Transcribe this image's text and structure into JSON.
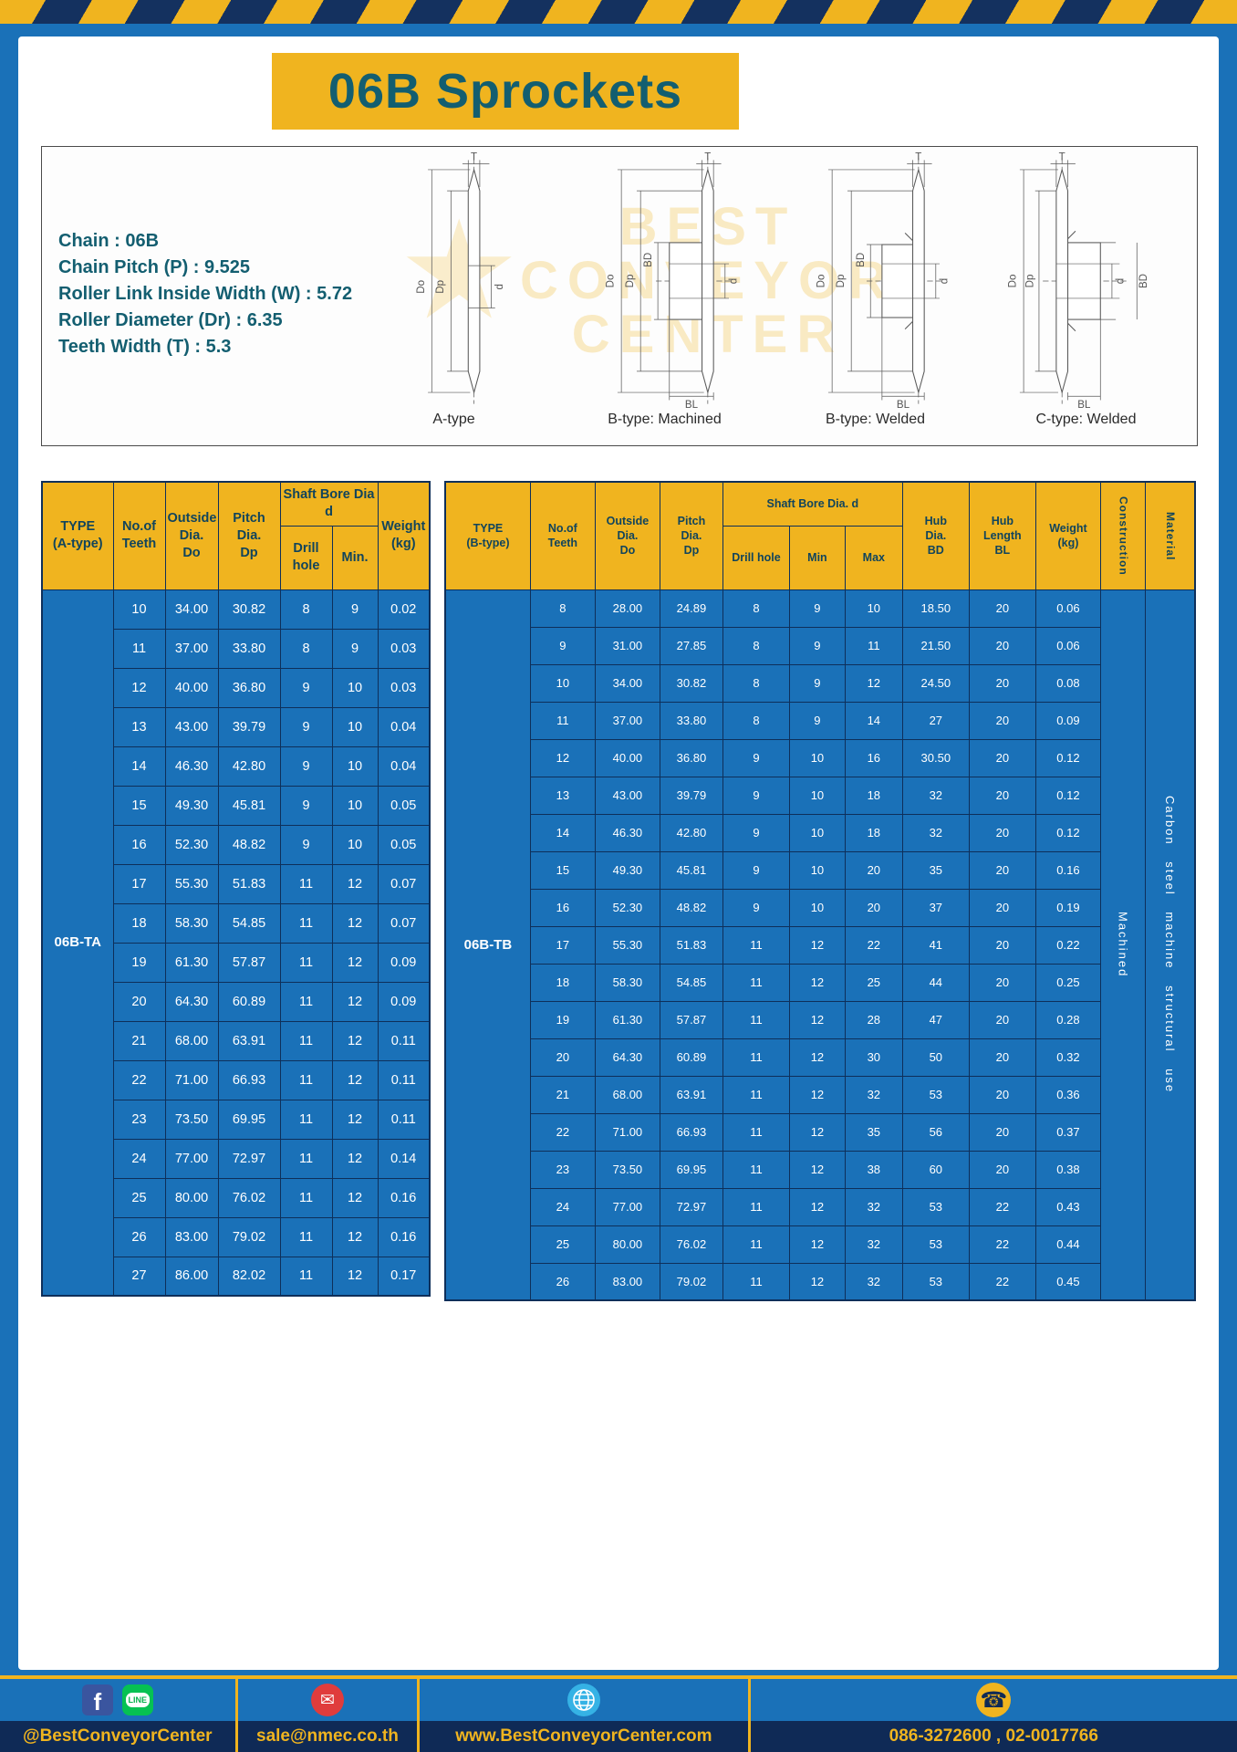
{
  "page": {
    "title": "06B Sprockets"
  },
  "specs": {
    "lines": [
      "Chain : 06B",
      "Chain Pitch (P) : 9.525",
      "Roller Link Inside Width (W) : 5.72",
      "Roller Diameter (Dr) : 6.35",
      "Teeth Width (T) : 5.3"
    ],
    "captions": [
      "A-type",
      "B-type: Machined",
      "B-type: Welded",
      "C-type: Welded"
    ],
    "dim_labels": {
      "t": "T",
      "do": "Do",
      "dp": "Dp",
      "d": "d",
      "bd": "BD",
      "bl": "BL"
    },
    "watermark": {
      "star": "★",
      "line1": "BEST",
      "line2": "CONVEYOR",
      "line3": "CENTER"
    }
  },
  "tableA": {
    "headers": {
      "type": "TYPE\n(A-type)",
      "teeth": "No.of\nTeeth",
      "outside": "Outside\nDia.\nDo",
      "pitch": "Pitch Dia.\nDp",
      "bore_group": "Shaft Bore Dia d",
      "drill": "Drill hole",
      "min": "Min.",
      "weight": "Weight\n(kg)"
    },
    "type_label": "06B-TA",
    "rows": [
      [
        "10",
        "34.00",
        "30.82",
        "8",
        "9",
        "0.02"
      ],
      [
        "11",
        "37.00",
        "33.80",
        "8",
        "9",
        "0.03"
      ],
      [
        "12",
        "40.00",
        "36.80",
        "9",
        "10",
        "0.03"
      ],
      [
        "13",
        "43.00",
        "39.79",
        "9",
        "10",
        "0.04"
      ],
      [
        "14",
        "46.30",
        "42.80",
        "9",
        "10",
        "0.04"
      ],
      [
        "15",
        "49.30",
        "45.81",
        "9",
        "10",
        "0.05"
      ],
      [
        "16",
        "52.30",
        "48.82",
        "9",
        "10",
        "0.05"
      ],
      [
        "17",
        "55.30",
        "51.83",
        "11",
        "12",
        "0.07"
      ],
      [
        "18",
        "58.30",
        "54.85",
        "11",
        "12",
        "0.07"
      ],
      [
        "19",
        "61.30",
        "57.87",
        "11",
        "12",
        "0.09"
      ],
      [
        "20",
        "64.30",
        "60.89",
        "11",
        "12",
        "0.09"
      ],
      [
        "21",
        "68.00",
        "63.91",
        "11",
        "12",
        "0.11"
      ],
      [
        "22",
        "71.00",
        "66.93",
        "11",
        "12",
        "0.11"
      ],
      [
        "23",
        "73.50",
        "69.95",
        "11",
        "12",
        "0.11"
      ],
      [
        "24",
        "77.00",
        "72.97",
        "11",
        "12",
        "0.14"
      ],
      [
        "25",
        "80.00",
        "76.02",
        "11",
        "12",
        "0.16"
      ],
      [
        "26",
        "83.00",
        "79.02",
        "11",
        "12",
        "0.16"
      ],
      [
        "27",
        "86.00",
        "82.02",
        "11",
        "12",
        "0.17"
      ]
    ]
  },
  "tableB": {
    "headers": {
      "type": "TYPE\n(B-type)",
      "teeth": "No.of\nTeeth",
      "outside": "Outside\nDia.\nDo",
      "pitch": "Pitch\nDia.\nDp",
      "bore_group": "Shaft Bore Dia. d",
      "drill": "Drill hole",
      "min": "Min",
      "max": "Max",
      "hub_dia": "Hub\nDia.\nBD",
      "hub_len": "Hub\nLength\nBL",
      "weight": "Weight\n(kg)",
      "construction": "Construction",
      "material": "Material"
    },
    "type_label": "06B-TB",
    "construction": "Machined",
    "material": "Carbon steel machine structural use",
    "rows": [
      [
        "8",
        "28.00",
        "24.89",
        "8",
        "9",
        "10",
        "18.50",
        "20",
        "0.06"
      ],
      [
        "9",
        "31.00",
        "27.85",
        "8",
        "9",
        "11",
        "21.50",
        "20",
        "0.06"
      ],
      [
        "10",
        "34.00",
        "30.82",
        "8",
        "9",
        "12",
        "24.50",
        "20",
        "0.08"
      ],
      [
        "11",
        "37.00",
        "33.80",
        "8",
        "9",
        "14",
        "27",
        "20",
        "0.09"
      ],
      [
        "12",
        "40.00",
        "36.80",
        "9",
        "10",
        "16",
        "30.50",
        "20",
        "0.12"
      ],
      [
        "13",
        "43.00",
        "39.79",
        "9",
        "10",
        "18",
        "32",
        "20",
        "0.12"
      ],
      [
        "14",
        "46.30",
        "42.80",
        "9",
        "10",
        "18",
        "32",
        "20",
        "0.12"
      ],
      [
        "15",
        "49.30",
        "45.81",
        "9",
        "10",
        "20",
        "35",
        "20",
        "0.16"
      ],
      [
        "16",
        "52.30",
        "48.82",
        "9",
        "10",
        "20",
        "37",
        "20",
        "0.19"
      ],
      [
        "17",
        "55.30",
        "51.83",
        "11",
        "12",
        "22",
        "41",
        "20",
        "0.22"
      ],
      [
        "18",
        "58.30",
        "54.85",
        "11",
        "12",
        "25",
        "44",
        "20",
        "0.25"
      ],
      [
        "19",
        "61.30",
        "57.87",
        "11",
        "12",
        "28",
        "47",
        "20",
        "0.28"
      ],
      [
        "20",
        "64.30",
        "60.89",
        "11",
        "12",
        "30",
        "50",
        "20",
        "0.32"
      ],
      [
        "21",
        "68.00",
        "63.91",
        "11",
        "12",
        "32",
        "53",
        "20",
        "0.36"
      ],
      [
        "22",
        "71.00",
        "66.93",
        "11",
        "12",
        "35",
        "56",
        "20",
        "0.37"
      ],
      [
        "23",
        "73.50",
        "69.95",
        "11",
        "12",
        "38",
        "60",
        "20",
        "0.38"
      ],
      [
        "24",
        "77.00",
        "72.97",
        "11",
        "12",
        "32",
        "53",
        "22",
        "0.43"
      ],
      [
        "25",
        "80.00",
        "76.02",
        "11",
        "12",
        "32",
        "53",
        "22",
        "0.44"
      ],
      [
        "26",
        "83.00",
        "79.02",
        "11",
        "12",
        "32",
        "53",
        "22",
        "0.45"
      ]
    ]
  },
  "footer": {
    "sections": [
      {
        "label": "@BestConveyorCenter"
      },
      {
        "label": "sale@nmec.co.th"
      },
      {
        "label": "www.BestConveyorCenter.com"
      },
      {
        "label": "086-3272600 , 02-0017766"
      }
    ],
    "facebook_glyph": "f",
    "line_glyph": "LINE",
    "email_glyph": "✉",
    "phone_glyph": "☎"
  },
  "colors": {
    "background_blue": "#1a71b8",
    "accent_yellow": "#f0b41f",
    "navy": "#0f2a56",
    "teal_text": "#135e70"
  }
}
